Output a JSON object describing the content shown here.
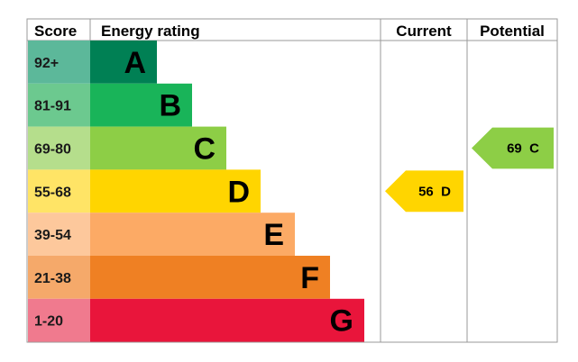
{
  "headers": {
    "score": "Score",
    "energy_rating": "Energy rating",
    "current": "Current",
    "potential": "Potential"
  },
  "chart_data": {
    "type": "bar",
    "bands": [
      {
        "score": "92+",
        "letter": "A",
        "color": "#008054",
        "score_bg": "#5cb89a"
      },
      {
        "score": "81-91",
        "letter": "B",
        "color": "#19b459",
        "score_bg": "#6cc98f"
      },
      {
        "score": "69-80",
        "letter": "C",
        "color": "#8dce46",
        "score_bg": "#b5de8c"
      },
      {
        "score": "55-68",
        "letter": "D",
        "color": "#ffd500",
        "score_bg": "#ffe466"
      },
      {
        "score": "39-54",
        "letter": "E",
        "color": "#fcaa65",
        "score_bg": "#fdc89c"
      },
      {
        "score": "21-38",
        "letter": "F",
        "color": "#ef8023",
        "score_bg": "#f5a96a"
      },
      {
        "score": "1-20",
        "letter": "G",
        "color": "#e9153b",
        "score_bg": "#f07a8e"
      }
    ],
    "current": {
      "value": 56,
      "letter": "D",
      "label": "56  D",
      "color": "#ffd500"
    },
    "potential": {
      "value": 69,
      "letter": "C",
      "label": "69  C",
      "color": "#8dce46"
    }
  }
}
